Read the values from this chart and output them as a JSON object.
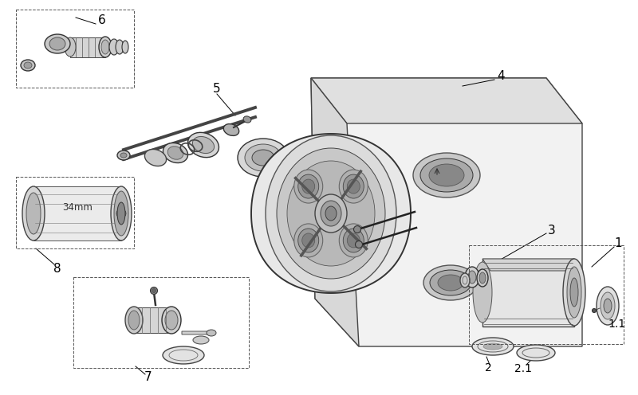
{
  "bg_color": "#ffffff",
  "line_color": "#000000",
  "light_gray": "#aaaaaa",
  "mid_gray": "#666666",
  "dark_gray": "#333333",
  "label_fontsize": 11,
  "figsize": [
    8.0,
    4.96
  ],
  "dpi": 100
}
